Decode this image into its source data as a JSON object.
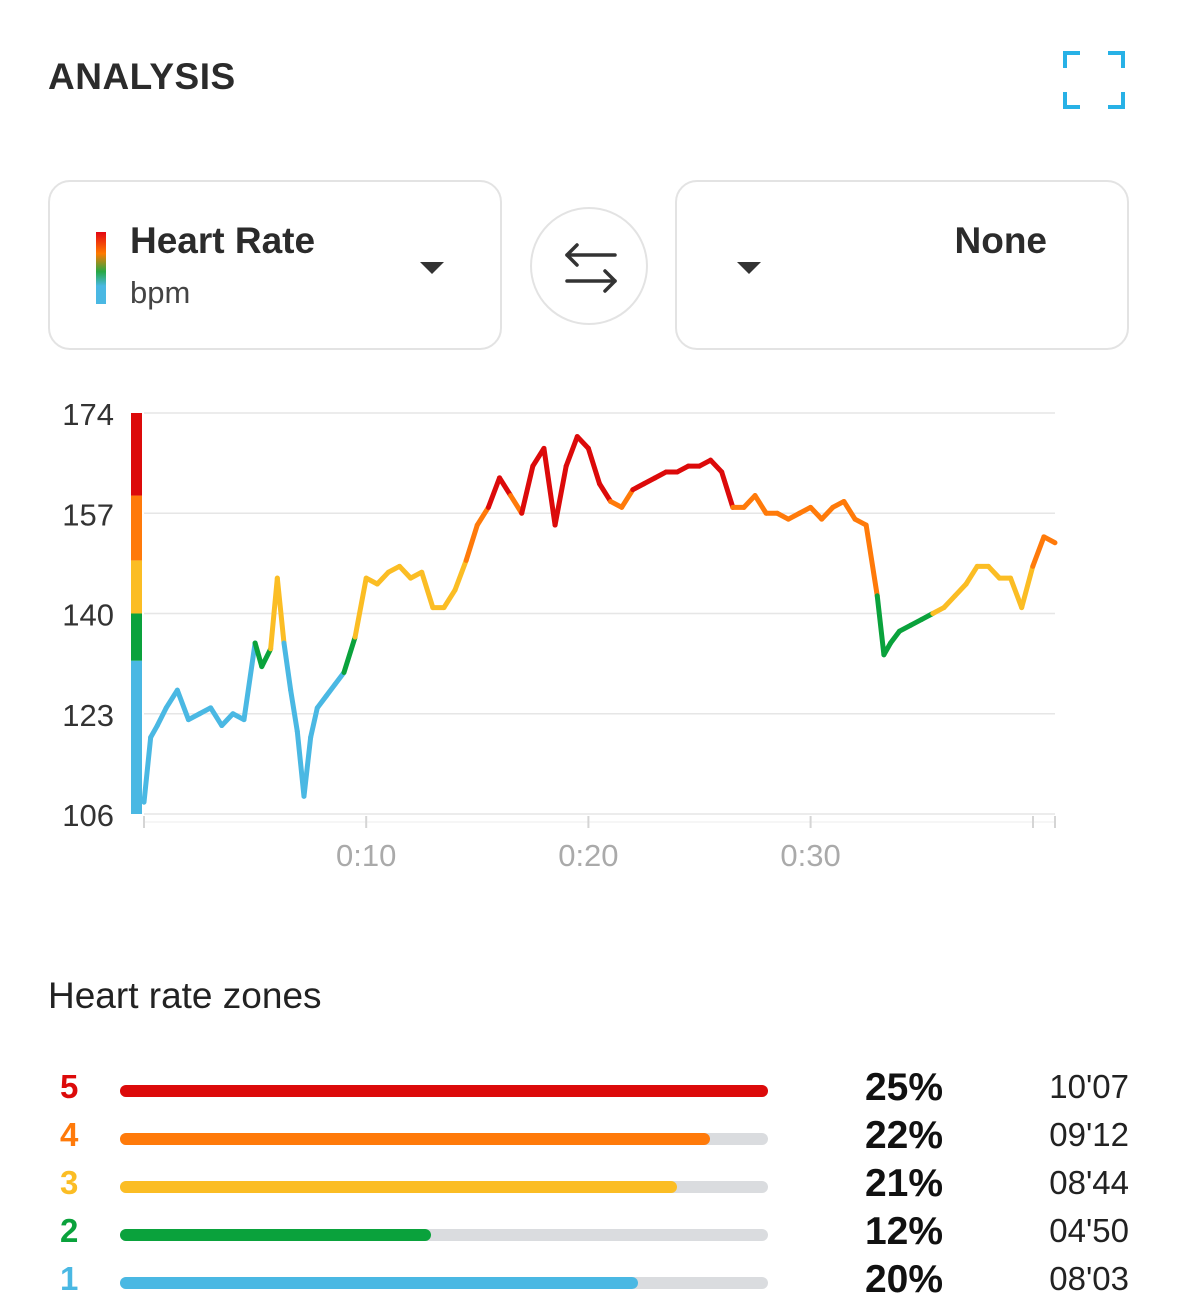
{
  "header": {
    "title": "ANALYSIS",
    "expand_icon": "expand-corners-icon"
  },
  "left_selector": {
    "title": "Heart Rate",
    "unit": "bpm",
    "icon": "zone-color-swatch-icon"
  },
  "swap_icon": "swap-arrows-icon",
  "right_selector": {
    "title": "None"
  },
  "chart_data": {
    "type": "line",
    "title": "",
    "xlabel": "",
    "ylabel": "",
    "y_ticks": [
      "174",
      "157",
      "140",
      "123",
      "106"
    ],
    "y_tick_values": [
      174,
      157,
      140,
      123,
      106
    ],
    "ylim": [
      106,
      174
    ],
    "x_ticks": [
      "0:10",
      "0:20",
      "0:30"
    ],
    "x_tick_values": [
      10,
      20,
      30
    ],
    "xlim": [
      0,
      41
    ],
    "grid": true,
    "zone_bands": [
      {
        "zone": "1",
        "from": 106,
        "to": 132,
        "color": "#4ab8e3"
      },
      {
        "zone": "2",
        "from": 132,
        "to": 140,
        "color": "#0aa23c"
      },
      {
        "zone": "3",
        "from": 140,
        "to": 149,
        "color": "#fbbd24"
      },
      {
        "zone": "4",
        "from": 149,
        "to": 160,
        "color": "#ff7a0a"
      },
      {
        "zone": "5",
        "from": 160,
        "to": 174,
        "color": "#dc0a0a"
      }
    ],
    "series": [
      {
        "x": [
          0,
          0.3,
          0.6,
          1.0,
          1.5,
          2.0,
          2.5,
          3.0,
          3.5,
          4.0,
          4.5,
          5.0,
          5.3,
          5.7,
          6.0,
          6.3,
          6.6,
          6.9,
          7.2,
          7.5,
          7.8,
          8.2,
          8.6,
          9.0,
          9.5,
          10.0,
          10.5,
          11.0,
          11.5,
          12.0,
          12.5,
          13.0,
          13.5,
          14.0,
          14.5,
          15.0,
          15.5,
          16.0,
          16.5,
          17.0,
          17.5,
          18.0,
          18.5,
          19.0,
          19.5,
          20.0,
          20.5,
          21.0,
          21.5,
          22.0,
          22.5,
          23.0,
          23.5,
          24.0,
          24.5,
          25.0,
          25.5,
          26.0,
          26.5,
          27.0,
          27.5,
          28.0,
          28.5,
          29.0,
          29.5,
          30.0,
          30.5,
          31.0,
          31.5,
          32.0,
          32.5,
          33.0,
          33.3,
          33.6,
          34.0,
          34.5,
          35.0,
          35.5,
          36.0,
          36.5,
          37.0,
          37.5,
          38.0,
          38.5,
          39.0,
          39.5,
          40.0,
          40.5,
          41.0
        ],
        "y": [
          108,
          119,
          121,
          124,
          127,
          122,
          123,
          124,
          121,
          123,
          122,
          135,
          131,
          134,
          146,
          135,
          127,
          120,
          109,
          119,
          124,
          126,
          128,
          130,
          136,
          146,
          145,
          147,
          148,
          146,
          147,
          141,
          141,
          144,
          149,
          155,
          158,
          163,
          160,
          157,
          165,
          168,
          155,
          165,
          170,
          168,
          162,
          159,
          158,
          161,
          162,
          163,
          164,
          164,
          165,
          165,
          166,
          164,
          158,
          158,
          160,
          157,
          157,
          156,
          157,
          158,
          156,
          158,
          159,
          156,
          155,
          143,
          133,
          135,
          137,
          138,
          139,
          140,
          141,
          143,
          145,
          148,
          148,
          146,
          146,
          141,
          148,
          153,
          152
        ]
      }
    ]
  },
  "zones": {
    "title": "Heart rate zones",
    "rows": [
      {
        "zone": "5",
        "color": "#dc0a0a",
        "fill": 1.0,
        "percent": "25%",
        "time": "10'07"
      },
      {
        "zone": "4",
        "color": "#ff7a0a",
        "fill": 0.91,
        "percent": "22%",
        "time": "09'12"
      },
      {
        "zone": "3",
        "color": "#fbbd24",
        "fill": 0.86,
        "percent": "21%",
        "time": "08'44"
      },
      {
        "zone": "2",
        "color": "#0aa23c",
        "fill": 0.48,
        "percent": "12%",
        "time": "04'50"
      },
      {
        "zone": "1",
        "color": "#4ab8e3",
        "fill": 0.8,
        "percent": "20%",
        "time": "08'03"
      }
    ]
  }
}
